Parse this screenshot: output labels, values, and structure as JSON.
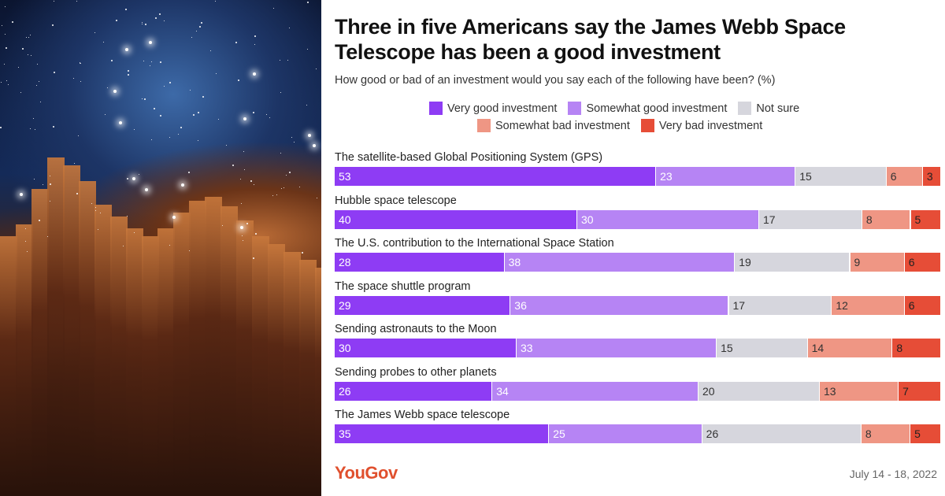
{
  "image": {
    "alt": "nebula-photo"
  },
  "colors": {
    "very_good": "#8e3cf4",
    "somewhat_good": "#b684f4",
    "not_sure": "#d6d6dd",
    "somewhat_bad": "#ef9684",
    "very_bad": "#e64d37"
  },
  "chart_data": {
    "type": "bar",
    "orientation": "horizontal-stacked",
    "title": "Three in five Americans say the James Webb Space Telescope has been a good investment",
    "subtitle": "How good or bad of an investment would you say each of the following have been? (%)",
    "legend_placement": "top",
    "categories": [
      "The satellite-based Global Positioning System (GPS)",
      "Hubble space telescope",
      "The U.S. contribution to the International Space Station",
      "The space shuttle program",
      "Sending astronauts to the Moon",
      "Sending probes to other planets",
      "The James Webb space telescope"
    ],
    "series": [
      {
        "name": "Very good investment",
        "values": [
          53,
          40,
          28,
          29,
          30,
          26,
          35
        ]
      },
      {
        "name": "Somewhat good investment",
        "values": [
          23,
          30,
          38,
          36,
          33,
          34,
          25
        ]
      },
      {
        "name": "Not sure",
        "values": [
          15,
          17,
          19,
          17,
          15,
          20,
          26
        ]
      },
      {
        "name": "Somewhat bad investment",
        "values": [
          6,
          8,
          9,
          12,
          14,
          13,
          8
        ]
      },
      {
        "name": "Very bad investment",
        "values": [
          3,
          5,
          6,
          6,
          8,
          7,
          5
        ]
      }
    ],
    "xlim": [
      0,
      100
    ]
  },
  "footer": {
    "logo": "YouGov",
    "date": "July 14 - 18, 2022"
  }
}
